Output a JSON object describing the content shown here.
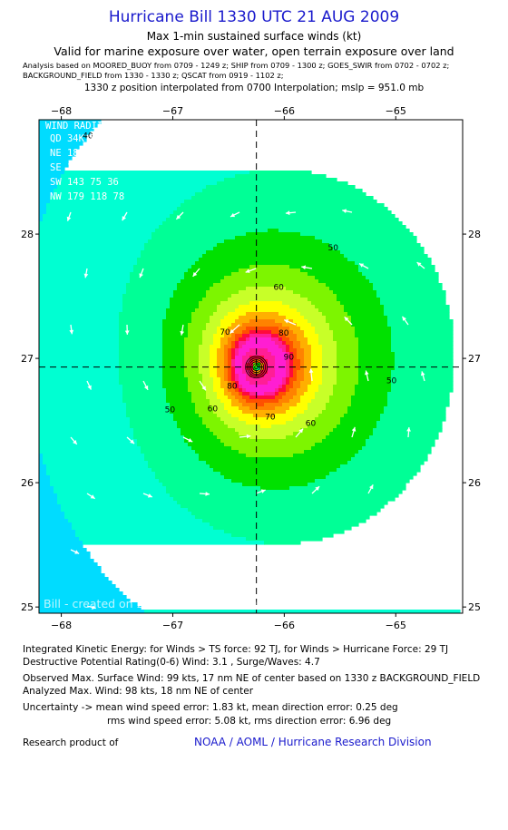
{
  "header": {
    "title": "Hurricane Bill 1330 UTC 21 AUG 2009",
    "subtitle1": "Max 1-min sustained surface winds (kt)",
    "subtitle2": "Valid for marine exposure over water, open terrain exposure over land",
    "analysis_line1": "Analysis based on  MOORED_BUOY from 0709 - 1249 z;  SHIP from 0709 - 1300 z;  GOES_SWIR from 0702 - 0702 z;",
    "analysis_line2": "BACKGROUND_FIELD from 1330 - 1330 z;  QSCAT from 0919 - 1102 z;",
    "interp_line": "1330 z position interpolated from 0700 Interpolation; mslp = 951.0 mb"
  },
  "wind_radii": {
    "title": "WIND RADII (NM)",
    "header_row": "QD  34K  50K  64K",
    "rows": [
      "NE  182  121   87",
      "SE  182  109   72",
      "SW  143   75   36",
      "NW  179  118   78"
    ]
  },
  "chart_data": {
    "type": "heatmap",
    "title": "Hurricane Bill 1330 UTC 21 AUG 2009",
    "x_axis": {
      "ticks": [
        -68,
        -67,
        -66,
        -65
      ],
      "range": [
        -68.2,
        -64.4
      ]
    },
    "y_axis": {
      "ticks": [
        25,
        26,
        27,
        28
      ],
      "range": [
        24.95,
        28.92
      ]
    },
    "center": {
      "lon": -66.25,
      "lat": 26.93
    },
    "contour_levels_labeled": [
      40,
      50,
      60,
      70,
      80,
      90
    ],
    "color_bands": [
      {
        "min": 30,
        "color": "#00b4ff"
      },
      {
        "min": 35,
        "color": "#00dcff"
      },
      {
        "min": 40,
        "color": "#00ffd2"
      },
      {
        "min": 45,
        "color": "#00ff96"
      },
      {
        "min": 50,
        "color": "#00e100"
      },
      {
        "min": 55,
        "color": "#7df500"
      },
      {
        "min": 60,
        "color": "#c8ff28"
      },
      {
        "min": 65,
        "color": "#ffff00"
      },
      {
        "min": 70,
        "color": "#ffaf00"
      },
      {
        "min": 75,
        "color": "#ff8200"
      },
      {
        "min": 80,
        "color": "#ff5000"
      },
      {
        "min": 85,
        "color": "#ff0a3c"
      },
      {
        "min": 90,
        "color": "#ff1e96"
      },
      {
        "min": 95,
        "color": "#ff1ed2"
      }
    ],
    "watermark": "Bill - created on 2009-08-21 16:22:59 UTC"
  },
  "info": {
    "ike": "Integrated Kinetic Energy:  for Winds > TS force: 92 TJ,  for Winds > Hurricane Force: 29 TJ",
    "dpr": "Destructive Potential Rating(0-6)   Wind: 3.1 , Surge/Waves: 4.7",
    "observed": "Observed Max. Surface Wind: 99 kts, 17 nm NE of center based on 1330 z BACKGROUND_FIELD",
    "analyzed": "Analyzed Max. Wind: 98 kts, 18 nm NE of center",
    "uncert1": "Uncertainty -> mean wind speed error: 1.83 kt,   mean direction error: 0.25 deg",
    "uncert2": "rms wind speed error: 5.08 kt,   rms direction error: 6.96 deg",
    "research": "Research product of",
    "org": "NOAA / AOML / Hurricane Research Division"
  }
}
